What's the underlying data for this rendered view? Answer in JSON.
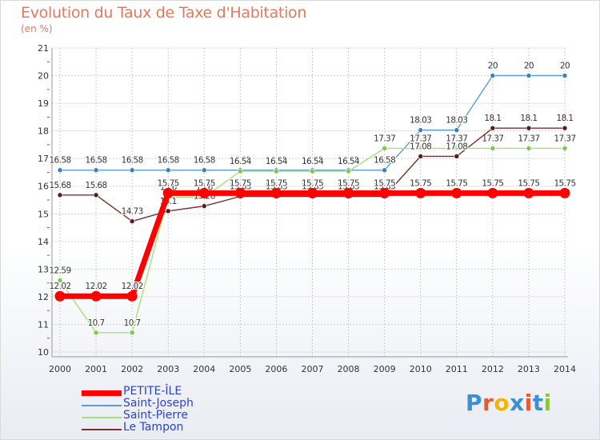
{
  "page": {
    "title": "Evolution du Taux de Taxe d'Habitation",
    "subtitle": "(en %)"
  },
  "logo": {
    "text": "Proxiti",
    "colors": [
      "#3a8fd6",
      "#e65c2e",
      "#f2b705",
      "#3a8fd6",
      "#e65c2e",
      "#3a8fd6",
      "#8cc63f"
    ]
  },
  "chart_data": {
    "type": "line",
    "x": [
      2000,
      2001,
      2002,
      2003,
      2004,
      2005,
      2006,
      2007,
      2008,
      2009,
      2010,
      2011,
      2012,
      2013,
      2014
    ],
    "ylim": [
      10,
      21
    ],
    "yticks": [
      10,
      11,
      12,
      13,
      14,
      15,
      16,
      17,
      18,
      19,
      20,
      21
    ],
    "grid": true,
    "legend_position": "bottom-left",
    "series": [
      {
        "name": "Saint-Joseph",
        "color": "#5b9bd5",
        "dot": "#3f7fc0",
        "values": [
          16.58,
          16.58,
          16.58,
          16.58,
          16.58,
          16.58,
          16.58,
          16.58,
          16.58,
          16.58,
          18.03,
          18.03,
          20,
          20,
          20
        ],
        "labels": [
          "16.58",
          "16.58",
          "16.58",
          "16.58",
          "16.58",
          "16.58",
          "16.58",
          "16.58",
          "16.58",
          "16.58",
          "18.03",
          "18.03",
          "20",
          "20",
          "20"
        ]
      },
      {
        "name": "Saint-Pierre",
        "color": "#a6e07a",
        "dot": "#7cc84a",
        "values": [
          12.59,
          10.7,
          10.7,
          15.6,
          15.6,
          16.54,
          16.54,
          16.54,
          16.54,
          17.37,
          17.37,
          17.37,
          17.37,
          17.37,
          17.37
        ],
        "labels": [
          "12.59",
          "10.7",
          "10.7",
          "15.6",
          "15.6",
          "16.54",
          "16.54",
          "16.54",
          "16.54",
          "17.37",
          "17.37",
          "17.37",
          "17.37",
          "17.37",
          "17.37"
        ]
      },
      {
        "name": "Le Tampon",
        "color": "#7a2e2e",
        "dot": "#5c1a1a",
        "values": [
          15.68,
          15.68,
          14.73,
          15.1,
          15.28,
          15.63,
          15.63,
          15.63,
          15.63,
          15.63,
          17.08,
          17.08,
          18.1,
          18.1,
          18.1
        ],
        "labels": [
          "15.68",
          "15.68",
          "14.73",
          "15.1",
          "15.28",
          "15.63",
          "15.63",
          "15.63",
          "15.63",
          "15.63",
          "17.08",
          "17.08",
          "18.1",
          "18.1",
          "18.1"
        ]
      },
      {
        "name": "PETITE-ÎLE",
        "color": "#ff0000",
        "dot": "#ff0000",
        "thick": true,
        "values": [
          12.02,
          12.02,
          12.02,
          15.75,
          15.75,
          15.75,
          15.75,
          15.75,
          15.75,
          15.75,
          15.75,
          15.75,
          15.75,
          15.75,
          15.75
        ],
        "labels": [
          "12.02",
          "12.02",
          "12.02",
          "15.75",
          "15.75",
          "15.75",
          "15.75",
          "15.75",
          "15.75",
          "15.75",
          "15.75",
          "15.75",
          "15.75",
          "15.75",
          "15.75"
        ]
      }
    ],
    "legend_order": [
      "PETITE-ÎLE",
      "Saint-Joseph",
      "Saint-Pierre",
      "Le Tampon"
    ]
  }
}
